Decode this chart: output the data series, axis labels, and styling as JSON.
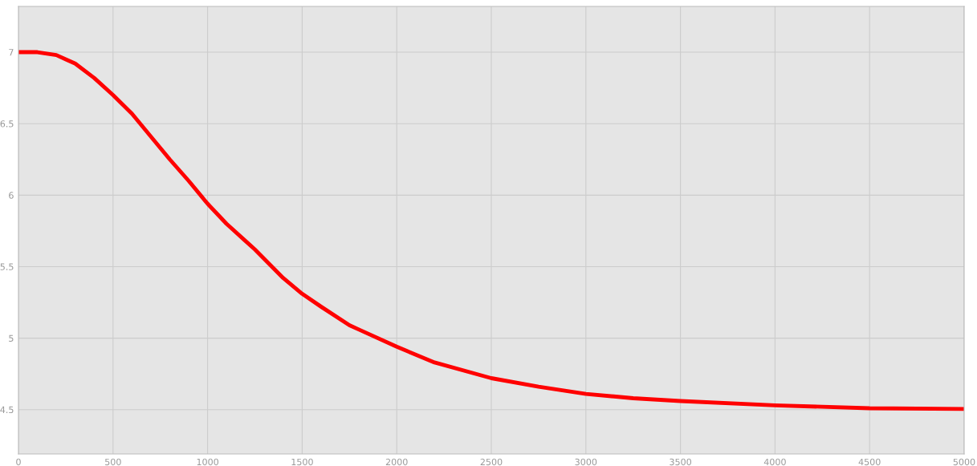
{
  "chart_data": {
    "type": "line",
    "x": [
      0,
      100,
      200,
      250,
      300,
      400,
      500,
      600,
      750,
      800,
      900,
      1000,
      1100,
      1200,
      1250,
      1400,
      1500,
      1600,
      1750,
      1800,
      2000,
      2200,
      2500,
      2750,
      3000,
      3250,
      3500,
      4000,
      4500,
      5000
    ],
    "series": [
      {
        "color": "#ff0000",
        "values": [
          7.0,
          7.0,
          6.98,
          6.95,
          6.92,
          6.82,
          6.7,
          6.57,
          6.33,
          6.25,
          6.1,
          5.94,
          5.8,
          5.68,
          5.62,
          5.42,
          5.31,
          5.22,
          5.09,
          5.06,
          4.94,
          4.83,
          4.72,
          4.66,
          4.61,
          4.58,
          4.56,
          4.53,
          4.51,
          4.505
        ]
      }
    ],
    "xlim": [
      0,
      5000
    ],
    "xticks": [
      0,
      500,
      1000,
      1500,
      2000,
      2500,
      3000,
      3500,
      4000,
      4500,
      5000
    ],
    "ylim": [
      4.19,
      7.32
    ],
    "yticks": [
      4.5,
      5,
      5.5,
      6,
      6.5,
      7
    ],
    "grid": true,
    "legend": false,
    "line_style": "solid",
    "marker": "none"
  }
}
